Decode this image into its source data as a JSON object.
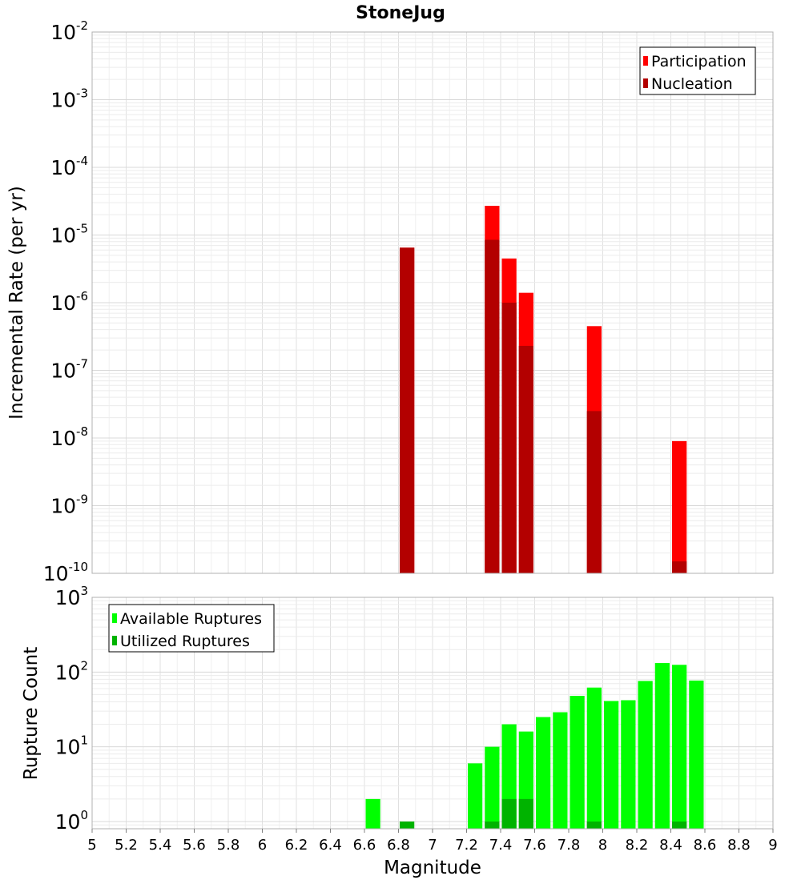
{
  "chart_data": [
    {
      "type": "bar",
      "title": "StoneJug",
      "xlabel": "Magnitude",
      "ylabel": "Incremental Rate (per yr)",
      "yscale": "log",
      "ylim_exponents": [
        -10,
        -2
      ],
      "y_tick_base": "10",
      "y_tick_exponents": [
        "-10",
        "-9",
        "-8",
        "-7",
        "-6",
        "-5",
        "-4",
        "-3",
        "-2"
      ],
      "xlim": [
        5,
        9
      ],
      "grid": true,
      "legend_position": "top-right",
      "bar_width": 0.1,
      "series": [
        {
          "name": "Participation",
          "color": "#ff0000",
          "x": [
            6.85,
            7.35,
            7.45,
            7.55,
            7.95,
            8.45
          ],
          "values": [
            6.5e-06,
            2.7e-05,
            4.5e-06,
            1.4e-06,
            4.5e-07,
            9e-09
          ]
        },
        {
          "name": "Nucleation",
          "color": "#b30000",
          "x": [
            6.85,
            7.35,
            7.45,
            7.55,
            7.95,
            8.45
          ],
          "values": [
            6.5e-06,
            8.5e-06,
            1e-06,
            2.3e-07,
            2.5e-08,
            1.5e-10
          ]
        }
      ]
    },
    {
      "type": "bar",
      "xlabel": "Magnitude",
      "ylabel": "Rupture Count",
      "yscale": "log",
      "ylim": [
        0.8,
        1000
      ],
      "y_tick_base": "10",
      "y_tick_exponents": [
        "0",
        "1",
        "2",
        "3"
      ],
      "xlim": [
        5,
        9
      ],
      "x_ticks": [
        "5",
        "5.2",
        "5.4",
        "5.6",
        "5.8",
        "6",
        "6.2",
        "6.4",
        "6.6",
        "6.8",
        "7",
        "7.2",
        "7.4",
        "7.6",
        "7.8",
        "8",
        "8.2",
        "8.4",
        "8.6",
        "8.8",
        "9"
      ],
      "grid": true,
      "legend_position": "top-left",
      "bar_width": 0.1,
      "series": [
        {
          "name": "Available Ruptures",
          "color": "#00ff00",
          "x": [
            6.65,
            7.25,
            7.35,
            7.45,
            7.55,
            7.65,
            7.75,
            7.85,
            7.95,
            8.05,
            8.15,
            8.25,
            8.35,
            8.45,
            8.55
          ],
          "values": [
            2,
            6,
            10,
            20,
            16,
            25,
            29,
            48,
            62,
            41,
            42,
            76,
            132,
            125,
            77
          ]
        },
        {
          "name": "Utilized Ruptures",
          "color": "#00b300",
          "x": [
            6.85,
            7.35,
            7.45,
            7.55,
            7.95,
            8.45
          ],
          "values": [
            1,
            1,
            2,
            2,
            1,
            1
          ]
        }
      ]
    }
  ]
}
